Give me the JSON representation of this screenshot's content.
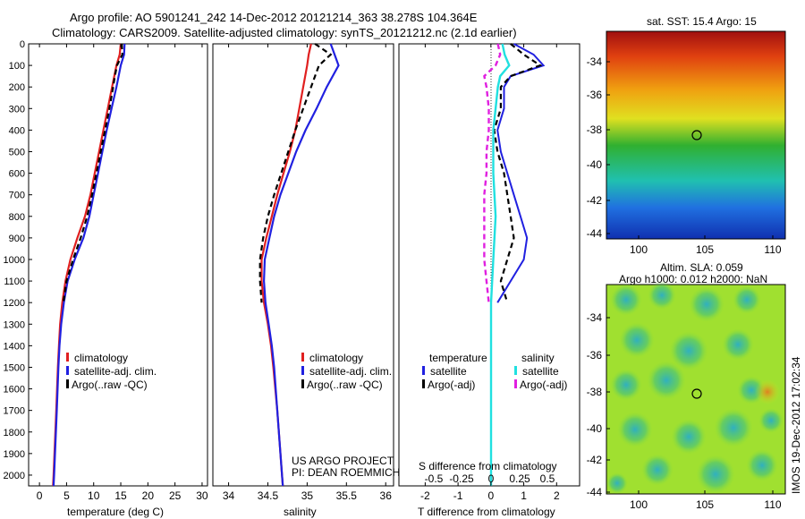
{
  "header": {
    "line1": "Argo profile: AO 5901241_242 14-Dec-2012 20121214_363 38.278S 104.364E",
    "line2": "Climatology: CARS2009. Satellite-adjusted climatology: synTS_20121212.nc (2.1d earlier)"
  },
  "right_panel": {
    "sst_title": "sat. SST: 15.4  Argo: 15",
    "sla_line1": "Altim. SLA: 0.059",
    "sla_line2": "Argo h1000: 0.012 h2000: NaN",
    "watermark": "IMOS 19-Dec-2012 17:02:34",
    "map_y_ticks": [
      "-34",
      "-36",
      "-38",
      "-40",
      "-42",
      "-44"
    ],
    "map_x_ticks": [
      "100",
      "105",
      "110"
    ],
    "colors": {
      "sst_hot": "#b01010",
      "sst_mid": "#20b020",
      "sst_cold": "#1040d0"
    }
  },
  "credit": {
    "line1": "US ARGO PROJECT",
    "line2": "PI: DEAN ROEMMICH"
  },
  "legends": {
    "temp": [
      "climatology",
      "satellite-adj. clim.",
      "Argo(..raw -QC)"
    ],
    "sal": [
      "climatology",
      "satellite-adj. clim.",
      "Argo(..raw -QC)"
    ],
    "diff_left_title": "temperature",
    "diff_right_title": "salinity",
    "diff_left": [
      "satellite",
      "Argo(-adj)"
    ],
    "diff_right": [
      "satellite",
      "Argo(-adj)"
    ]
  },
  "chart_data": [
    {
      "type": "line",
      "xlabel": "temperature (deg C)",
      "ylabel": "",
      "xlim": [
        -2,
        31
      ],
      "ylim": [
        2050,
        0
      ],
      "xticks": [
        "0",
        "5",
        "10",
        "15",
        "20",
        "25",
        "30"
      ],
      "yticks": [
        "0",
        "100",
        "200",
        "300",
        "400",
        "500",
        "600",
        "700",
        "800",
        "900",
        "1000",
        "1100",
        "1200",
        "1300",
        "1400",
        "1500",
        "1600",
        "1700",
        "1800",
        "1900",
        "2000"
      ],
      "colors": {
        "climatology": "#e02020",
        "satellite": "#2020e0",
        "argo": "#000000"
      },
      "series": [
        {
          "name": "climatology",
          "depth": [
            0,
            50,
            100,
            200,
            300,
            400,
            500,
            600,
            700,
            800,
            900,
            1000,
            1100,
            1200,
            1300,
            1400,
            1500,
            1700,
            2000,
            2050
          ],
          "values": [
            15.0,
            14.8,
            14.2,
            13.4,
            12.6,
            11.8,
            11.0,
            10.2,
            9.4,
            8.4,
            7.0,
            5.7,
            4.8,
            4.2,
            3.8,
            3.6,
            3.4,
            3.1,
            2.6,
            2.5
          ]
        },
        {
          "name": "satellite-adj. clim.",
          "depth": [
            0,
            50,
            100,
            200,
            300,
            400,
            500,
            600,
            700,
            800,
            900,
            1000,
            1100,
            1200,
            1300,
            1400,
            1500,
            1700,
            2000,
            2050
          ],
          "values": [
            15.7,
            15.6,
            15.0,
            14.2,
            13.3,
            12.4,
            11.6,
            10.8,
            10.0,
            9.2,
            8.1,
            6.5,
            5.2,
            4.5,
            4.0,
            3.7,
            3.5,
            3.2,
            2.7,
            2.6
          ]
        },
        {
          "name": "Argo(..raw -QC)",
          "depth": [
            0,
            50,
            100,
            150,
            200,
            300,
            400,
            500,
            600,
            700,
            800,
            900,
            1000,
            1100,
            1200
          ],
          "values": [
            15.2,
            15.3,
            14.3,
            13.9,
            13.6,
            12.9,
            12.1,
            11.3,
            10.5,
            9.7,
            8.8,
            7.6,
            6.2,
            5.0,
            4.4
          ]
        }
      ]
    },
    {
      "type": "line",
      "xlabel": "salinity",
      "ylabel": "",
      "xlim": [
        33.8,
        36.1
      ],
      "ylim": [
        2050,
        0
      ],
      "xticks": [
        "34",
        "34.5",
        "35",
        "35.5",
        "36"
      ],
      "series": [
        {
          "name": "climatology",
          "depth": [
            0,
            50,
            100,
            200,
            300,
            400,
            500,
            600,
            700,
            800,
            900,
            1000,
            1100,
            1200,
            1300,
            1400,
            1500,
            1700,
            2000,
            2050
          ],
          "values": [
            35.05,
            35.02,
            35.0,
            34.95,
            34.9,
            34.85,
            34.78,
            34.7,
            34.62,
            34.55,
            34.48,
            34.42,
            34.42,
            34.45,
            34.5,
            34.54,
            34.57,
            34.62,
            34.68,
            34.69
          ]
        },
        {
          "name": "satellite-adj. clim.",
          "depth": [
            0,
            50,
            100,
            200,
            300,
            400,
            500,
            600,
            700,
            800,
            900,
            1000,
            1100,
            1200,
            1300,
            1400,
            1500,
            1700,
            2000,
            2050
          ],
          "values": [
            35.3,
            35.35,
            35.4,
            35.25,
            35.12,
            34.98,
            34.86,
            34.76,
            34.66,
            34.58,
            34.52,
            34.46,
            34.45,
            34.47,
            34.51,
            34.55,
            34.58,
            34.62,
            34.68,
            34.69
          ]
        },
        {
          "name": "Argo(..raw -QC)",
          "depth": [
            0,
            50,
            100,
            200,
            300,
            400,
            500,
            600,
            700,
            800,
            900,
            1000,
            1100,
            1200
          ],
          "values": [
            35.1,
            35.3,
            35.15,
            35.05,
            34.95,
            34.85,
            34.76,
            34.67,
            34.58,
            34.5,
            34.44,
            34.4,
            34.4,
            34.42
          ]
        }
      ]
    },
    {
      "type": "line",
      "xlabel": "T difference from climatology",
      "top_label": "S difference from climatology",
      "ylabel": "",
      "xlim": [
        -2.8,
        2.7
      ],
      "ylim": [
        2050,
        0
      ],
      "xticks": [
        "-2",
        "-1",
        "0",
        "1",
        "2"
      ],
      "top_ticks": [
        "-0.5",
        "-0.25",
        "0",
        "0.25",
        "0.5"
      ],
      "colors": {
        "temp_sat": "#2020e0",
        "temp_argo": "#000000",
        "sal_sat": "#20e0e0",
        "sal_argo": "#e020e0"
      },
      "series": [
        {
          "name": "temperature satellite",
          "depth": [
            0,
            50,
            100,
            150,
            200,
            300,
            400,
            500,
            600,
            700,
            800,
            900,
            1000,
            1100,
            1200
          ],
          "values": [
            0.7,
            1.3,
            1.6,
            0.6,
            0.4,
            0.4,
            0.2,
            0.3,
            0.5,
            0.7,
            0.9,
            1.1,
            1.0,
            0.6,
            0.2
          ]
        },
        {
          "name": "temperature Argo(-adj)",
          "depth": [
            0,
            50,
            100,
            150,
            200,
            300,
            400,
            500,
            600,
            700,
            800,
            900,
            1000,
            1100,
            1200
          ],
          "values": [
            0.6,
            1.0,
            1.5,
            0.6,
            0.3,
            0.3,
            0.1,
            0.2,
            0.4,
            0.5,
            0.6,
            0.7,
            0.5,
            0.3,
            0.5
          ]
        },
        {
          "name": "salinity satellite",
          "depth": [
            0,
            50,
            100,
            150,
            200,
            300,
            400,
            600,
            800,
            1000,
            1200,
            1400,
            1600,
            1800,
            2000,
            2050
          ],
          "values": [
            0.05,
            0.06,
            0.08,
            0.04,
            0.03,
            0.02,
            0.01,
            0.01,
            0.02,
            0.01,
            0.0,
            0.0,
            0.0,
            0.0,
            0.0,
            0.0
          ]
        },
        {
          "name": "salinity Argo(-adj)",
          "depth": [
            0,
            50,
            100,
            150,
            200,
            300,
            400,
            500,
            600,
            700,
            800,
            900,
            1000,
            1100,
            1200
          ],
          "values": [
            0.03,
            0.04,
            0.02,
            -0.03,
            -0.02,
            -0.01,
            -0.01,
            -0.02,
            -0.02,
            -0.03,
            -0.03,
            -0.03,
            -0.03,
            -0.02,
            -0.01
          ]
        }
      ]
    }
  ]
}
